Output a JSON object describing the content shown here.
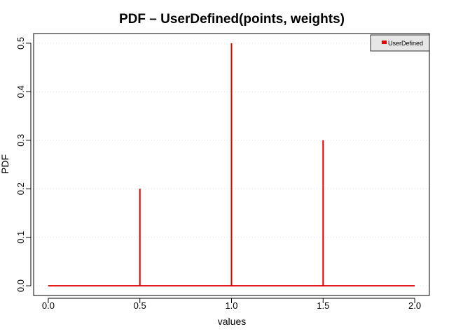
{
  "chart_data": {
    "type": "line",
    "title": "PDF – UserDefined(points, weights)",
    "xlabel": "values",
    "ylabel": "PDF",
    "xlim": [
      -0.08,
      2.08
    ],
    "ylim": [
      -0.02,
      0.52
    ],
    "x_ticks": [
      0.0,
      0.5,
      1.0,
      1.5,
      2.0
    ],
    "x_tick_labels": [
      "0.0",
      "0.5",
      "1.0",
      "1.5",
      "2.0"
    ],
    "y_ticks": [
      0.0,
      0.1,
      0.2,
      0.3,
      0.4,
      0.5
    ],
    "y_tick_labels": [
      "0.0",
      "0.1",
      "0.2",
      "0.3",
      "0.4",
      "0.5"
    ],
    "grid": true,
    "legend_position": "top-right",
    "series": [
      {
        "name": "UserDefined",
        "color": "#e00000",
        "points": [
          0.5,
          1.0,
          1.5
        ],
        "weights": [
          0.2,
          0.5,
          0.3
        ],
        "x_range": [
          0.0,
          2.0
        ]
      }
    ]
  }
}
